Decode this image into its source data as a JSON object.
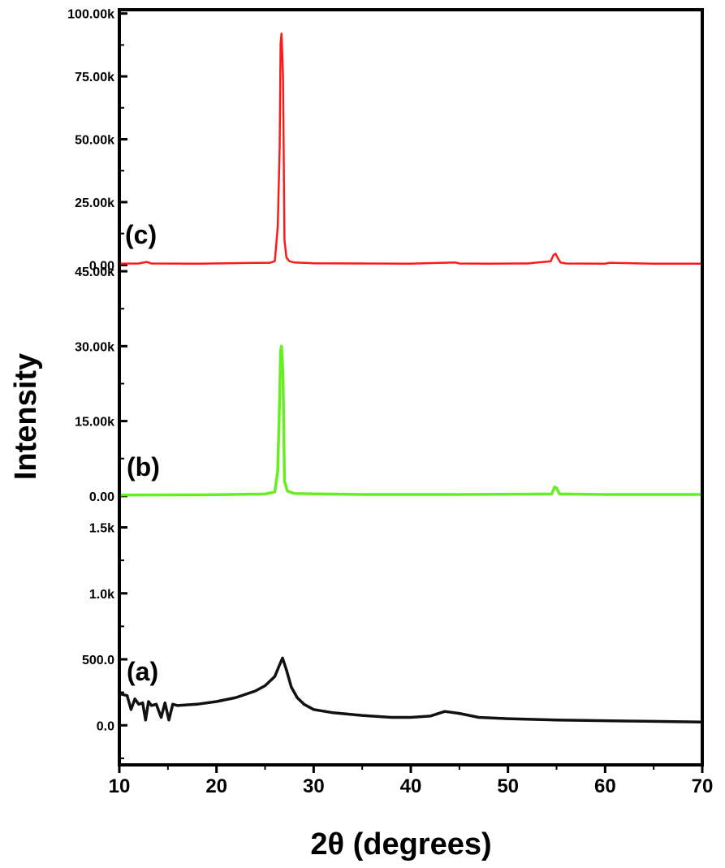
{
  "chart_data": {
    "type": "line",
    "xlabel": "2θ (degrees)",
    "ylabel": "Intensity",
    "xlim": [
      10,
      70
    ],
    "xticks": [
      "10",
      "20",
      "30",
      "40",
      "50",
      "60",
      "70"
    ],
    "grid": false,
    "legend": "none",
    "panels": [
      {
        "label": "(c)",
        "color": "#ff1a1a",
        "ylim": [
          -1500,
          101500
        ],
        "ytick_values": [
          0,
          25000,
          50000,
          75000,
          100000
        ],
        "yticks": [
          "0.00",
          "25.00k",
          "50.00k",
          "75.00k",
          "100.00k"
        ],
        "x": [
          10,
          12,
          12.8,
          13.3,
          18,
          21,
          23,
          25.5,
          26.0,
          26.3,
          26.5,
          26.6,
          26.7,
          26.85,
          27.0,
          27.2,
          27.5,
          28,
          30,
          35,
          40,
          44.6,
          45,
          48,
          52,
          54.4,
          54.7,
          54.9,
          55.1,
          55.4,
          56,
          60,
          60.5,
          65,
          70
        ],
        "values": [
          500,
          600,
          1200,
          600,
          500,
          700,
          800,
          900,
          1500,
          15000,
          47000,
          88000,
          92000,
          75000,
          10000,
          3000,
          1500,
          1000,
          700,
          600,
          550,
          1000,
          600,
          550,
          600,
          1500,
          4000,
          4500,
          3000,
          1000,
          600,
          550,
          900,
          500,
          500
        ]
      },
      {
        "label": "(b)",
        "color": "#66ee22",
        "ylim": [
          -1000,
          45500
        ],
        "ytick_values": [
          0,
          15000,
          30000,
          45000
        ],
        "yticks": [
          "0.00",
          "15.00k",
          "30.00k",
          "45.00k"
        ],
        "x": [
          10,
          20,
          25,
          26.0,
          26.3,
          26.5,
          26.6,
          26.7,
          26.85,
          27.0,
          27.3,
          28,
          35,
          45,
          54.5,
          54.8,
          55.0,
          55.3,
          60,
          70
        ],
        "values": [
          200,
          250,
          400,
          800,
          5000,
          20000,
          29000,
          30000,
          24000,
          3000,
          1000,
          500,
          300,
          300,
          400,
          1800,
          1600,
          400,
          300,
          300
        ]
      },
      {
        "label": "(a)",
        "color": "#111111",
        "ylim": [
          -300,
          1700
        ],
        "ytick_values": [
          0,
          500,
          1000,
          1500
        ],
        "yticks": [
          "0.0",
          "500.0",
          "1.0k",
          "1.5k"
        ],
        "x": [
          10,
          10.8,
          11.2,
          11.6,
          12,
          12.4,
          12.7,
          13,
          13.3,
          13.8,
          14.3,
          14.7,
          15.1,
          15.5,
          16,
          18,
          20,
          22,
          24,
          25,
          26,
          26.5,
          26.8,
          27.2,
          27.7,
          28.3,
          29,
          30,
          32,
          35,
          38,
          40,
          42,
          43.5,
          45,
          47,
          50,
          55,
          60,
          65,
          70
        ],
        "values": [
          240,
          225,
          120,
          200,
          160,
          170,
          40,
          180,
          150,
          160,
          60,
          170,
          40,
          160,
          150,
          160,
          180,
          210,
          260,
          300,
          370,
          460,
          510,
          420,
          290,
          210,
          160,
          120,
          95,
          75,
          60,
          60,
          70,
          105,
          90,
          60,
          50,
          40,
          35,
          30,
          25
        ]
      }
    ]
  }
}
